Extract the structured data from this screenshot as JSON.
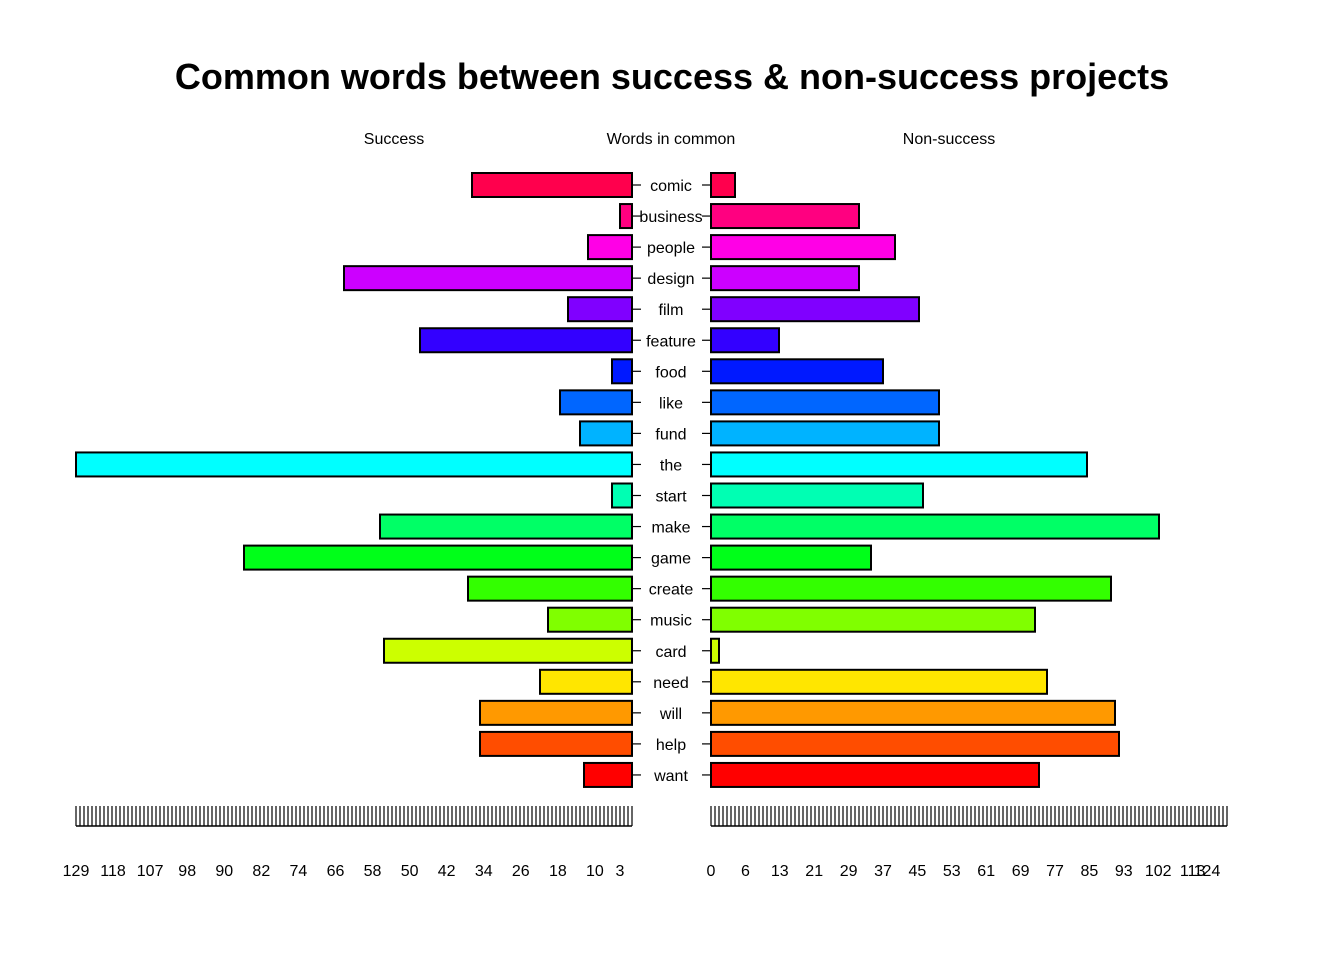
{
  "chart_data": {
    "type": "bar",
    "orientation": "horizontal",
    "layout": "pyramid",
    "title": "Common words between success & non-success projects",
    "left_label": "Success",
    "center_label": "Words in common",
    "right_label": "Non-success",
    "categories": [
      "comic",
      "business",
      "people",
      "design",
      "film",
      "feature",
      "food",
      "like",
      "fund",
      "the",
      "start",
      "make",
      "game",
      "create",
      "music",
      "card",
      "need",
      "will",
      "help",
      "want"
    ],
    "series": [
      {
        "name": "Success",
        "side": "left",
        "values": [
          40,
          3,
          11,
          72,
          16,
          53,
          5,
          18,
          13,
          139,
          5,
          63,
          97,
          41,
          21,
          62,
          23,
          38,
          38,
          12
        ]
      },
      {
        "name": "Non-success",
        "side": "right",
        "values": [
          6,
          37,
          46,
          37,
          52,
          17,
          43,
          57,
          57,
          94,
          53,
          112,
          40,
          100,
          81,
          2,
          84,
          101,
          102,
          82
        ]
      }
    ],
    "colors": [
      "#FF004D",
      "#FF0080",
      "#FF00E6",
      "#CC00FF",
      "#8000FF",
      "#3300FF",
      "#0019FF",
      "#0066FF",
      "#00B3FF",
      "#00FFFF",
      "#00FFB3",
      "#00FF66",
      "#00FF19",
      "#33FF00",
      "#80FF00",
      "#CCFF00",
      "#FFE600",
      "#FF9900",
      "#FF4D00",
      "#FF0000"
    ],
    "left_axis": {
      "ticks": [
        129,
        118,
        107,
        98,
        90,
        82,
        74,
        66,
        58,
        50,
        42,
        34,
        26,
        18,
        10,
        3
      ],
      "xlim": [
        0,
        139
      ]
    },
    "right_axis": {
      "ticks": [
        0,
        6,
        13,
        21,
        29,
        37,
        45,
        53,
        61,
        69,
        77,
        85,
        93,
        102,
        113,
        124
      ],
      "xlim": [
        0,
        129
      ]
    },
    "grid": false,
    "legend": "none"
  }
}
